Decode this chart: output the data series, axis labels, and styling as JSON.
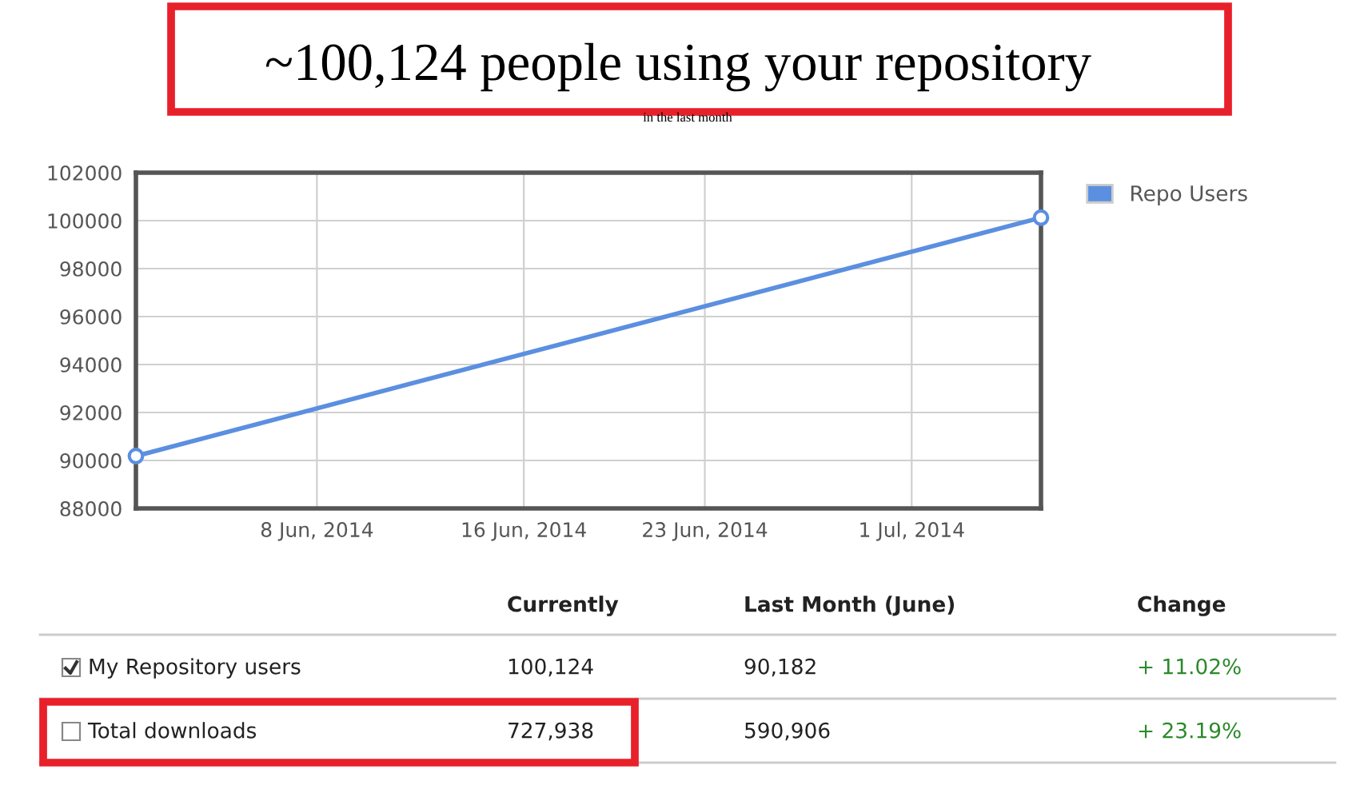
{
  "chart_data": [
    {
      "type": "line",
      "title": "~100,124 people using your repository",
      "subtitle": "in the last month",
      "x": [
        "2014-06-01",
        "2014-07-06"
      ],
      "series": [
        {
          "name": "Repo Users",
          "color": "#5b8fe0",
          "values": [
            90182,
            100124
          ]
        }
      ],
      "xlim": [
        "2014-06-01",
        "2014-07-06"
      ],
      "xticks": [
        {
          "value": "2014-06-08",
          "label": "8 Jun, 2014"
        },
        {
          "value": "2014-06-16",
          "label": "16 Jun, 2014"
        },
        {
          "value": "2014-06-23",
          "label": "23 Jun, 2014"
        },
        {
          "value": "2014-07-01",
          "label": "1 Jul, 2014"
        }
      ],
      "ylim": [
        88000,
        102000
      ],
      "yticks": [
        88000,
        90000,
        92000,
        94000,
        96000,
        98000,
        100000,
        102000
      ],
      "grid": true,
      "legend": "top right",
      "marker": "circle",
      "line_style": "solid"
    },
    {
      "type": "other",
      "categories": [
        null,
        "Currently",
        "Last Month (June)",
        "Change"
      ],
      "y_categories": [
        "My Repository users",
        "Total downloads"
      ],
      "cell_labels": [
        [
          "100,124",
          "90,182",
          "+ 11.02%"
        ],
        [
          "727,938",
          "590,906",
          "+ 23.19%"
        ]
      ]
    }
  ]
}
